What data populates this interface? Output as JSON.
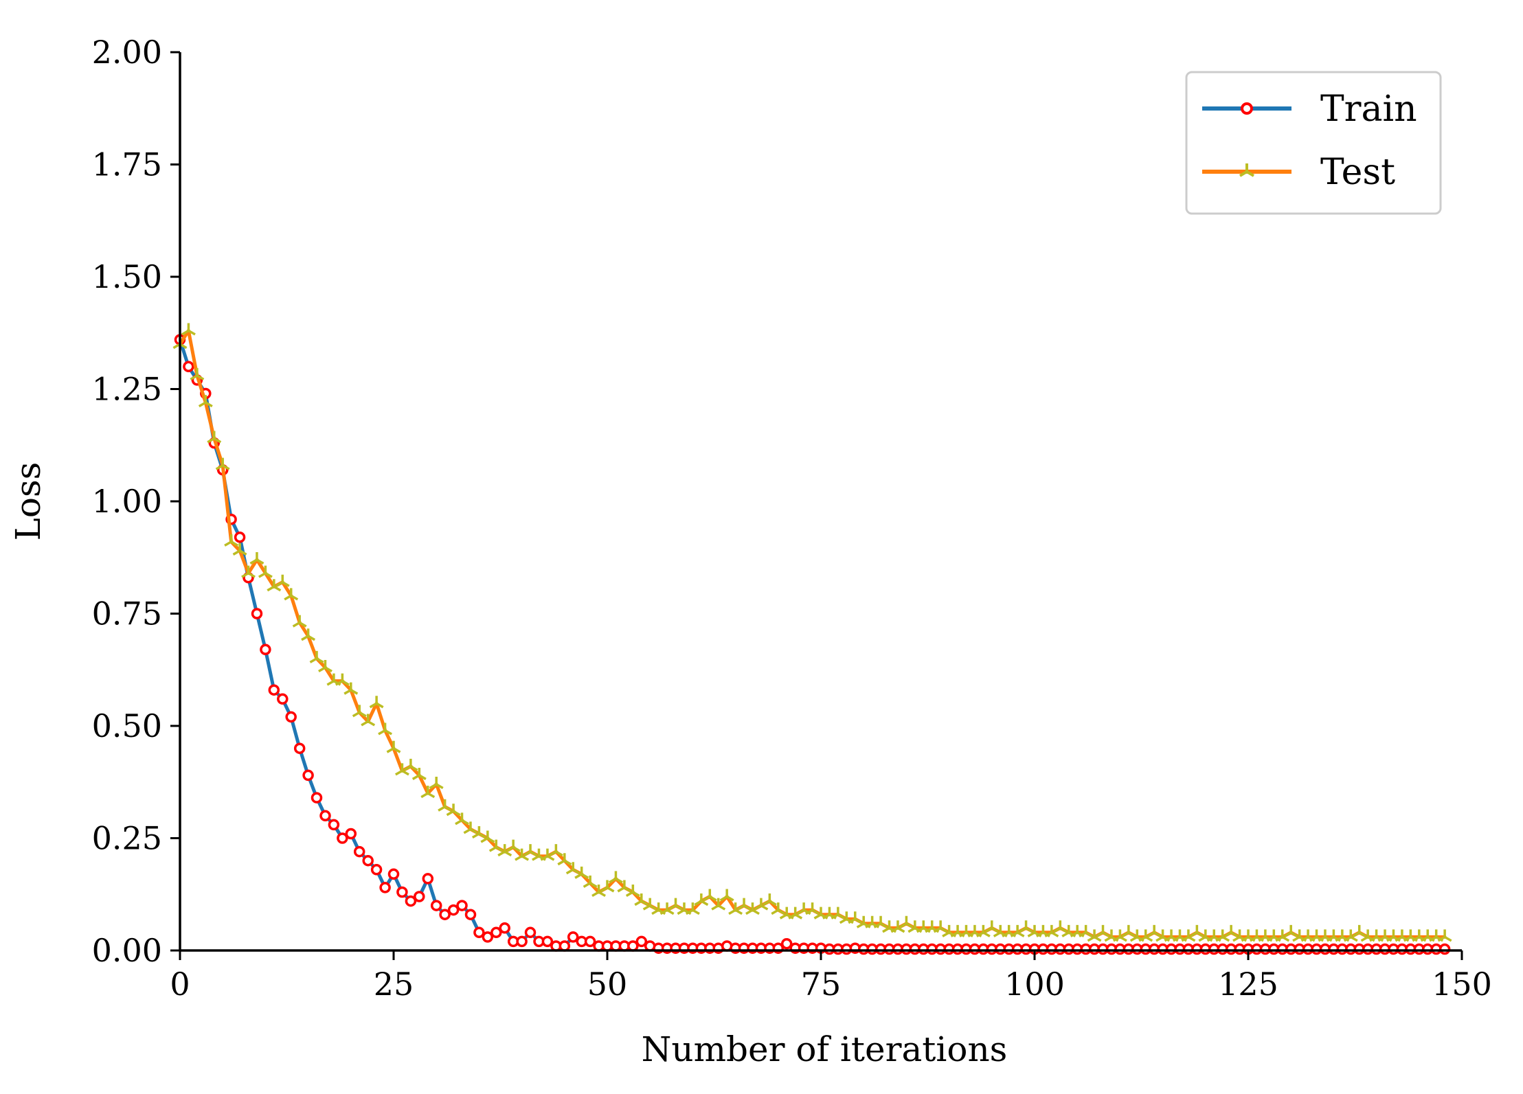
{
  "chart_data": {
    "type": "line",
    "title": "",
    "xlabel": "Number of iterations",
    "ylabel": "Loss",
    "xlim": [
      0,
      150
    ],
    "ylim": [
      0,
      2
    ],
    "x_ticks": [
      0,
      25,
      50,
      75,
      100,
      125,
      150
    ],
    "x_tick_labels": [
      "0",
      "25",
      "50",
      "75",
      "100",
      "125",
      "150"
    ],
    "y_ticks": [
      0,
      0.25,
      0.5,
      0.75,
      1.0,
      1.25,
      1.5,
      1.75,
      2.0
    ],
    "y_tick_labels": [
      "0.00",
      "0.25",
      "0.50",
      "0.75",
      "1.00",
      "1.25",
      "1.50",
      "1.75",
      "2.00"
    ],
    "grid": false,
    "legend_position": "top-right",
    "series": [
      {
        "name": "Train",
        "line_color": "#1f77b4",
        "marker": "circle",
        "marker_color": "#ff0000",
        "values": [
          1.36,
          1.3,
          1.27,
          1.24,
          1.13,
          1.07,
          0.96,
          0.92,
          0.83,
          0.75,
          0.67,
          0.58,
          0.56,
          0.52,
          0.45,
          0.39,
          0.34,
          0.3,
          0.28,
          0.25,
          0.26,
          0.22,
          0.2,
          0.18,
          0.14,
          0.17,
          0.13,
          0.11,
          0.12,
          0.16,
          0.1,
          0.08,
          0.09,
          0.1,
          0.08,
          0.04,
          0.03,
          0.04,
          0.05,
          0.02,
          0.02,
          0.04,
          0.02,
          0.02,
          0.01,
          0.01,
          0.03,
          0.02,
          0.02,
          0.01,
          0.01,
          0.01,
          0.01,
          0.01,
          0.02,
          0.01,
          0.005,
          0.005,
          0.005,
          0.005,
          0.005,
          0.005,
          0.005,
          0.005,
          0.01,
          0.005,
          0.005,
          0.005,
          0.005,
          0.005,
          0.005,
          0.015,
          0.005,
          0.005,
          0.005,
          0.005,
          0.003,
          0.003,
          0.003,
          0.005,
          0.003,
          0.003,
          0.003,
          0.003,
          0.003,
          0.003,
          0.003,
          0.003,
          0.003,
          0.003,
          0.003,
          0.003,
          0.003,
          0.003,
          0.003,
          0.003,
          0.003,
          0.003,
          0.003,
          0.003,
          0.003,
          0.003,
          0.003,
          0.003,
          0.003,
          0.003,
          0.003,
          0.003,
          0.003,
          0.003,
          0.003,
          0.003,
          0.003,
          0.003,
          0.003,
          0.003,
          0.003,
          0.003,
          0.003,
          0.003,
          0.003,
          0.003,
          0.003,
          0.003,
          0.003,
          0.003,
          0.003,
          0.003,
          0.003,
          0.003,
          0.003,
          0.003,
          0.003,
          0.003,
          0.003,
          0.003,
          0.003,
          0.003,
          0.003,
          0.003,
          0.003,
          0.003,
          0.003,
          0.003,
          0.003,
          0.003,
          0.003,
          0.003,
          0.003
        ]
      },
      {
        "name": "Test",
        "line_color": "#ff7f0e",
        "marker": "tri_up",
        "marker_color": "#bcbd22",
        "values": [
          1.35,
          1.38,
          1.28,
          1.22,
          1.14,
          1.08,
          0.91,
          0.89,
          0.84,
          0.87,
          0.84,
          0.81,
          0.82,
          0.79,
          0.73,
          0.7,
          0.65,
          0.63,
          0.6,
          0.6,
          0.58,
          0.53,
          0.51,
          0.55,
          0.49,
          0.45,
          0.4,
          0.41,
          0.39,
          0.35,
          0.37,
          0.32,
          0.31,
          0.29,
          0.27,
          0.26,
          0.25,
          0.23,
          0.22,
          0.23,
          0.21,
          0.22,
          0.21,
          0.21,
          0.22,
          0.2,
          0.18,
          0.17,
          0.15,
          0.13,
          0.14,
          0.16,
          0.14,
          0.13,
          0.11,
          0.1,
          0.09,
          0.09,
          0.1,
          0.09,
          0.09,
          0.11,
          0.12,
          0.1,
          0.12,
          0.09,
          0.1,
          0.09,
          0.1,
          0.11,
          0.09,
          0.08,
          0.08,
          0.09,
          0.09,
          0.08,
          0.08,
          0.08,
          0.07,
          0.07,
          0.06,
          0.06,
          0.06,
          0.05,
          0.05,
          0.06,
          0.05,
          0.05,
          0.05,
          0.05,
          0.04,
          0.04,
          0.04,
          0.04,
          0.04,
          0.05,
          0.04,
          0.04,
          0.04,
          0.05,
          0.04,
          0.04,
          0.04,
          0.05,
          0.04,
          0.04,
          0.04,
          0.03,
          0.04,
          0.03,
          0.03,
          0.04,
          0.03,
          0.03,
          0.04,
          0.03,
          0.03,
          0.03,
          0.03,
          0.04,
          0.03,
          0.03,
          0.03,
          0.04,
          0.03,
          0.03,
          0.03,
          0.03,
          0.03,
          0.03,
          0.04,
          0.03,
          0.03,
          0.03,
          0.03,
          0.03,
          0.03,
          0.03,
          0.04,
          0.03,
          0.03,
          0.03,
          0.03,
          0.03,
          0.03,
          0.03,
          0.03,
          0.03,
          0.03
        ]
      }
    ]
  }
}
